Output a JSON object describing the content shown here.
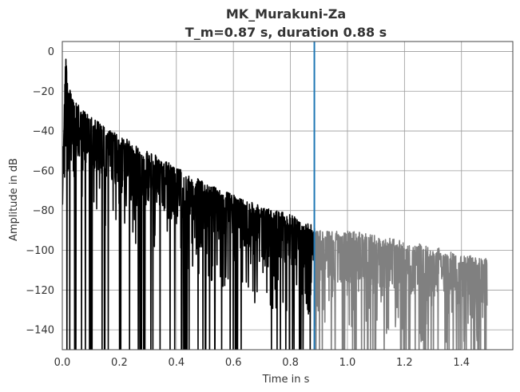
{
  "chart_data": {
    "type": "line",
    "title": "MK_Murakuni-Za",
    "subtitle": "T_m=0.87 s, duration 0.88 s",
    "xlabel": "Time in s",
    "ylabel": "Amplitude in dB",
    "xlim": [
      0.0,
      1.58
    ],
    "ylim": [
      -150,
      5
    ],
    "x_ticks": [
      0.0,
      0.2,
      0.4,
      0.6,
      0.8,
      1.0,
      1.2,
      1.4
    ],
    "x_tick_labels": [
      "0.0",
      "0.2",
      "0.4",
      "0.6",
      "0.8",
      "1.0",
      "1.2",
      "1.4"
    ],
    "y_ticks": [
      0,
      -20,
      -40,
      -60,
      -80,
      -100,
      -120,
      -140
    ],
    "y_tick_labels": [
      "0",
      "−20",
      "−40",
      "−60",
      "−80",
      "−100",
      "−120",
      "−140"
    ],
    "grid": true,
    "vertical_marker": {
      "x": 0.884,
      "color": "#1f77b4"
    },
    "series": [
      {
        "color": "#000000",
        "envelope_upper": [
          [
            0.0,
            -55
          ],
          [
            0.012,
            0
          ],
          [
            0.02,
            -18
          ],
          [
            0.04,
            -22
          ],
          [
            0.06,
            -28
          ],
          [
            0.1,
            -32
          ],
          [
            0.15,
            -38
          ],
          [
            0.2,
            -42
          ],
          [
            0.3,
            -50
          ],
          [
            0.4,
            -58
          ],
          [
            0.5,
            -66
          ],
          [
            0.6,
            -72
          ],
          [
            0.7,
            -78
          ],
          [
            0.8,
            -82
          ],
          [
            0.86,
            -86
          ],
          [
            0.884,
            -88
          ]
        ],
        "envelope_lower": [
          [
            0.0,
            -150
          ],
          [
            0.2,
            -150
          ],
          [
            0.4,
            -150
          ],
          [
            0.6,
            -150
          ],
          [
            0.884,
            -150
          ]
        ]
      },
      {
        "color": "#808080",
        "envelope_upper": [
          [
            0.884,
            -88
          ],
          [
            0.9,
            -90
          ],
          [
            1.0,
            -90
          ],
          [
            1.1,
            -92
          ],
          [
            1.2,
            -95
          ],
          [
            1.3,
            -98
          ],
          [
            1.4,
            -102
          ],
          [
            1.49,
            -104
          ]
        ],
        "envelope_lower": [
          [
            0.884,
            -150
          ],
          [
            1.49,
            -150
          ]
        ]
      }
    ],
    "noise_floor": {
      "from": 0.884,
      "to": 1.49
    }
  }
}
